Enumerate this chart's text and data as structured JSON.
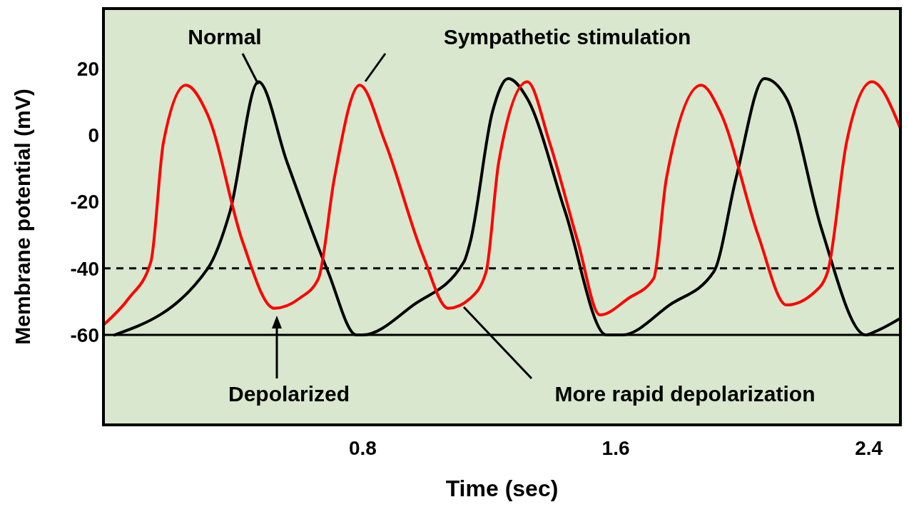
{
  "chart_data": {
    "type": "line",
    "xlabel": "Time (sec)",
    "ylabel": "Membrane potential (mV)",
    "xlim": [
      -0.02,
      2.5
    ],
    "ylim": [
      -87,
      38
    ],
    "xticks": [
      0.8,
      1.6,
      2.4
    ],
    "yticks": [
      20,
      0,
      -20,
      -40,
      -60
    ],
    "grid": false,
    "marker": "none",
    "series": [
      {
        "name": "Normal",
        "color": "#000000",
        "x": [
          0.015,
          0.31,
          0.38,
          0.47,
          0.56,
          0.69,
          0.78,
          0.8,
          0.96,
          1.12,
          1.14,
          1.21,
          1.26,
          1.32,
          1.44,
          1.57,
          1.62,
          1.77,
          1.91,
          1.98,
          2.07,
          2.14,
          2.25,
          2.39,
          2.42,
          2.5
        ],
        "values": [
          -60,
          -40,
          -23,
          16,
          -8,
          -41,
          -60,
          -60,
          -51,
          -38,
          -32,
          7,
          17,
          11,
          -23,
          -60,
          -60,
          -51,
          -41,
          -13,
          17,
          11,
          -28,
          -60,
          -59,
          -55
        ]
      },
      {
        "name": "Sympathetic stimulation",
        "color": "#ff0000",
        "x": [
          -0.02,
          0.06,
          0.13,
          0.17,
          0.24,
          0.31,
          0.42,
          0.52,
          0.6,
          0.66,
          0.71,
          0.79,
          0.87,
          0.99,
          1.07,
          1.14,
          1.19,
          1.23,
          1.32,
          1.39,
          1.48,
          1.55,
          1.64,
          1.72,
          1.76,
          1.87,
          1.93,
          2.05,
          2.14,
          2.23,
          2.27,
          2.33,
          2.41,
          2.5
        ],
        "values": [
          -57,
          -49,
          -38,
          -2,
          15,
          6,
          -32,
          -52,
          -49,
          -43,
          -13,
          15,
          -2,
          -36,
          -52,
          -49,
          -41,
          -8,
          16,
          -2,
          -32,
          -54,
          -49,
          -43,
          -13,
          15,
          7,
          -30,
          -51,
          -47,
          -41,
          -2,
          16,
          2
        ]
      }
    ],
    "ref_lines": [
      {
        "axis": "y",
        "value": -40,
        "color": "#000000",
        "line_style": "dashed"
      },
      {
        "axis": "y",
        "value": -60,
        "color": "#000000",
        "line_style": "solid"
      }
    ],
    "annotations": [
      "Depolarized",
      "More rapid depolarization"
    ]
  }
}
